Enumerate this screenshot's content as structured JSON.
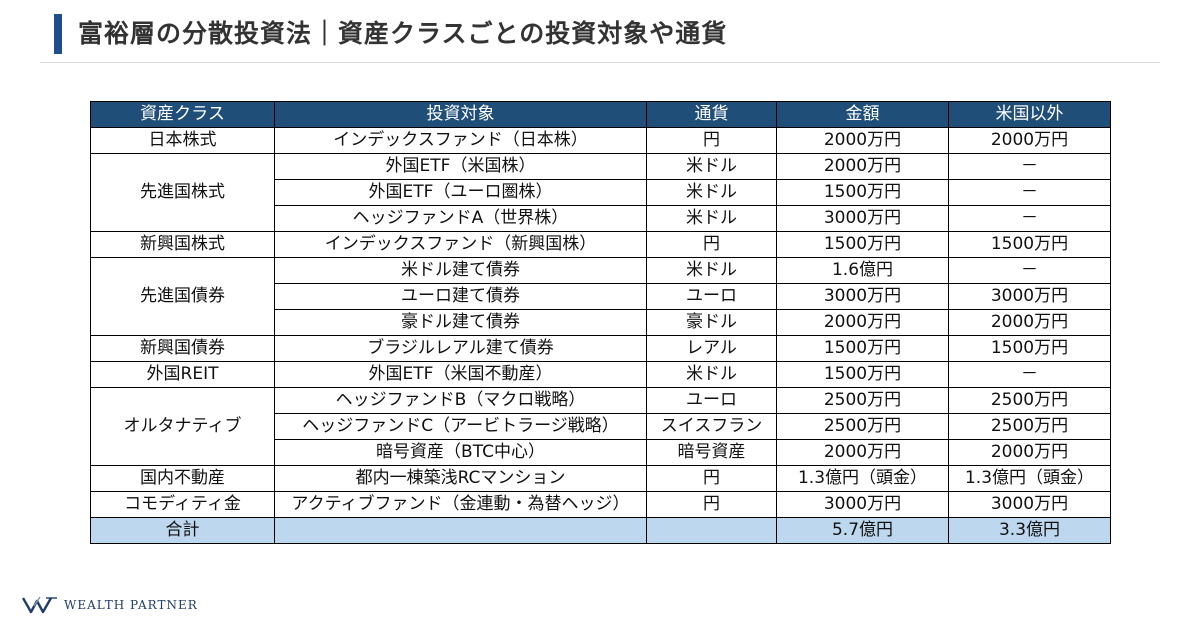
{
  "header": {
    "title": "富裕層の分散投資法｜資産クラスごとの投資対象や通貨"
  },
  "table": {
    "columns": [
      "資産クラス",
      "投資対象",
      "通貨",
      "金額",
      "米国以外"
    ],
    "groups": [
      {
        "asset_class": "日本株式",
        "rows": [
          {
            "target": "インデックスファンド（日本株）",
            "currency": "円",
            "amount": "2000万円",
            "non_us": "2000万円"
          }
        ]
      },
      {
        "asset_class": "先進国株式",
        "rows": [
          {
            "target": "外国ETF（米国株）",
            "currency": "米ドル",
            "amount": "2000万円",
            "non_us": "－"
          },
          {
            "target": "外国ETF（ユーロ圏株）",
            "currency": "米ドル",
            "amount": "1500万円",
            "non_us": "－"
          },
          {
            "target": "ヘッジファンドA（世界株）",
            "currency": "米ドル",
            "amount": "3000万円",
            "non_us": "－"
          }
        ]
      },
      {
        "asset_class": "新興国株式",
        "rows": [
          {
            "target": "インデックスファンド（新興国株）",
            "currency": "円",
            "amount": "1500万円",
            "non_us": "1500万円"
          }
        ]
      },
      {
        "asset_class": "先進国債券",
        "rows": [
          {
            "target": "米ドル建て債券",
            "currency": "米ドル",
            "amount": "1.6億円",
            "non_us": "－"
          },
          {
            "target": "ユーロ建て債券",
            "currency": "ユーロ",
            "amount": "3000万円",
            "non_us": "3000万円"
          },
          {
            "target": "豪ドル建て債券",
            "currency": "豪ドル",
            "amount": "2000万円",
            "non_us": "2000万円"
          }
        ]
      },
      {
        "asset_class": "新興国債券",
        "rows": [
          {
            "target": "ブラジルレアル建て債券",
            "currency": "レアル",
            "amount": "1500万円",
            "non_us": "1500万円"
          }
        ]
      },
      {
        "asset_class": "外国REIT",
        "rows": [
          {
            "target": "外国ETF（米国不動産）",
            "currency": "米ドル",
            "amount": "1500万円",
            "non_us": "－"
          }
        ]
      },
      {
        "asset_class": "オルタナティブ",
        "rows": [
          {
            "target": "ヘッジファンドB（マクロ戦略）",
            "currency": "ユーロ",
            "amount": "2500万円",
            "non_us": "2500万円"
          },
          {
            "target": "ヘッジファンドC（アービトラージ戦略）",
            "currency": "スイスフラン",
            "amount": "2500万円",
            "non_us": "2500万円"
          },
          {
            "target": "暗号資産（BTC中心）",
            "currency": "暗号資産",
            "amount": "2000万円",
            "non_us": "2000万円"
          }
        ]
      },
      {
        "asset_class": "国内不動産",
        "rows": [
          {
            "target": "都内一棟築浅RCマンション",
            "currency": "円",
            "amount": "1.3億円（頭金）",
            "non_us": "1.3億円（頭金）"
          }
        ]
      },
      {
        "asset_class": "コモディティ金",
        "rows": [
          {
            "target": "アクティブファンド（金連動・為替ヘッジ）",
            "currency": "円",
            "amount": "3000万円",
            "non_us": "3000万円"
          }
        ]
      }
    ],
    "total": {
      "label": "合計",
      "target": "",
      "currency": "",
      "amount": "5.7億円",
      "non_us": "3.3億円"
    }
  },
  "footer": {
    "logo_text": "WEALTH PARTNER"
  },
  "colors": {
    "accent": "#1f4e8c",
    "header_bg": "#1f4e79",
    "total_bg": "#bdd7ee"
  }
}
